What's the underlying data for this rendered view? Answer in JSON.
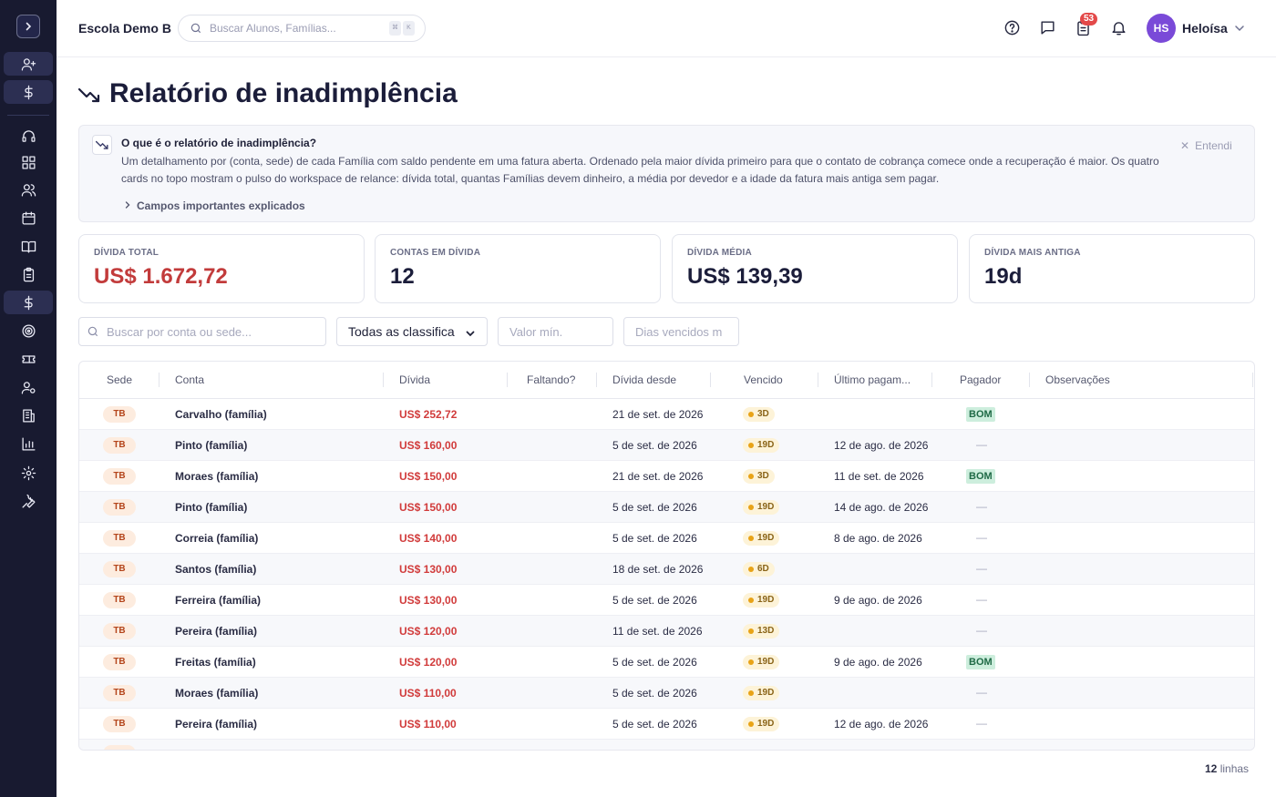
{
  "header": {
    "school_name": "Escola Demo B",
    "search_placeholder": "Buscar Alunos, Famílias...",
    "kbd_mod": "⌘",
    "kbd_key": "K",
    "notification_count": "53",
    "user_initials": "HS",
    "user_name": "Heloísa"
  },
  "page": {
    "title": "Relatório de inadimplência"
  },
  "info": {
    "title": "O que é o relatório de inadimplência?",
    "text": "Um detalhamento por (conta, sede) de cada Família com saldo pendente em uma fatura aberta. Ordenado pela maior dívida primeiro para que o contato de cobrança comece onde a recuperação é maior. Os quatro cards no topo mostram o pulso do workspace de relance: dívida total, quantas Famílias devem dinheiro, a média por devedor e a idade da fatura mais antiga sem pagar.",
    "link": "Campos importantes explicados",
    "dismiss": "Entendi"
  },
  "kpis": [
    {
      "label": "DÍVIDA TOTAL",
      "value": "US$ 1.672,72"
    },
    {
      "label": "CONTAS EM DÍVIDA",
      "value": "12"
    },
    {
      "label": "DÍVIDA MÉDIA",
      "value": "US$ 139,39"
    },
    {
      "label": "DÍVIDA MAIS ANTIGA",
      "value": "19d"
    }
  ],
  "filters": {
    "search_placeholder": "Buscar por conta ou sede...",
    "classification_selected": "Todas as classifica",
    "min_value_placeholder": "Valor mín.",
    "days_overdue_placeholder": "Dias vencidos m"
  },
  "table": {
    "headers": [
      "Sede",
      "Conta",
      "Dívida",
      "Faltando?",
      "Dívida desde",
      "Vencido",
      "Último pagam...",
      "Pagador",
      "Observações"
    ],
    "rows": [
      {
        "sede": "TB",
        "conta": "Carvalho (família)",
        "divida": "US$ 252,72",
        "desde": "21 de set. de 2026",
        "vencido": "3D",
        "ultimo": "",
        "pagador": "BOM"
      },
      {
        "sede": "TB",
        "conta": "Pinto (família)",
        "divida": "US$ 160,00",
        "desde": "5 de set. de 2026",
        "vencido": "19D",
        "ultimo": "12 de ago. de 2026",
        "pagador": "—"
      },
      {
        "sede": "TB",
        "conta": "Moraes (família)",
        "divida": "US$ 150,00",
        "desde": "21 de set. de 2026",
        "vencido": "3D",
        "ultimo": "11 de set. de 2026",
        "pagador": "BOM"
      },
      {
        "sede": "TB",
        "conta": "Pinto (família)",
        "divida": "US$ 150,00",
        "desde": "5 de set. de 2026",
        "vencido": "19D",
        "ultimo": "14 de ago. de 2026",
        "pagador": "—"
      },
      {
        "sede": "TB",
        "conta": "Correia (família)",
        "divida": "US$ 140,00",
        "desde": "5 de set. de 2026",
        "vencido": "19D",
        "ultimo": "8 de ago. de 2026",
        "pagador": "—"
      },
      {
        "sede": "TB",
        "conta": "Santos (família)",
        "divida": "US$ 130,00",
        "desde": "18 de set. de 2026",
        "vencido": "6D",
        "ultimo": "",
        "pagador": "—"
      },
      {
        "sede": "TB",
        "conta": "Ferreira (família)",
        "divida": "US$ 130,00",
        "desde": "5 de set. de 2026",
        "vencido": "19D",
        "ultimo": "9 de ago. de 2026",
        "pagador": "—"
      },
      {
        "sede": "TB",
        "conta": "Pereira (família)",
        "divida": "US$ 120,00",
        "desde": "11 de set. de 2026",
        "vencido": "13D",
        "ultimo": "",
        "pagador": "—"
      },
      {
        "sede": "TB",
        "conta": "Freitas (família)",
        "divida": "US$ 120,00",
        "desde": "5 de set. de 2026",
        "vencido": "19D",
        "ultimo": "9 de ago. de 2026",
        "pagador": "BOM"
      },
      {
        "sede": "TB",
        "conta": "Moraes (família)",
        "divida": "US$ 110,00",
        "desde": "5 de set. de 2026",
        "vencido": "19D",
        "ultimo": "",
        "pagador": "—"
      },
      {
        "sede": "TB",
        "conta": "Pereira (família)",
        "divida": "US$ 110,00",
        "desde": "5 de set. de 2026",
        "vencido": "19D",
        "ultimo": "12 de ago. de 2026",
        "pagador": "—"
      }
    ]
  },
  "footer": {
    "count": "12",
    "label": "linhas"
  },
  "sidebar_icons": [
    "add-user-icon",
    "dollar-icon",
    "headset-icon",
    "dashboard-icon",
    "users-icon",
    "calendar-icon",
    "book-icon",
    "clipboard-icon",
    "dollar-icon",
    "target-icon",
    "ticket-icon",
    "user-settings-icon",
    "building-icon",
    "bar-chart-icon",
    "gear-icon",
    "wrench-icon"
  ],
  "colors": {
    "sidebar_bg": "#181a30",
    "debt_red": "#d13b3b",
    "overdue_dot": "#e8a317",
    "good_payer": "#cdeedd",
    "avatar": "#7a4ad8"
  }
}
